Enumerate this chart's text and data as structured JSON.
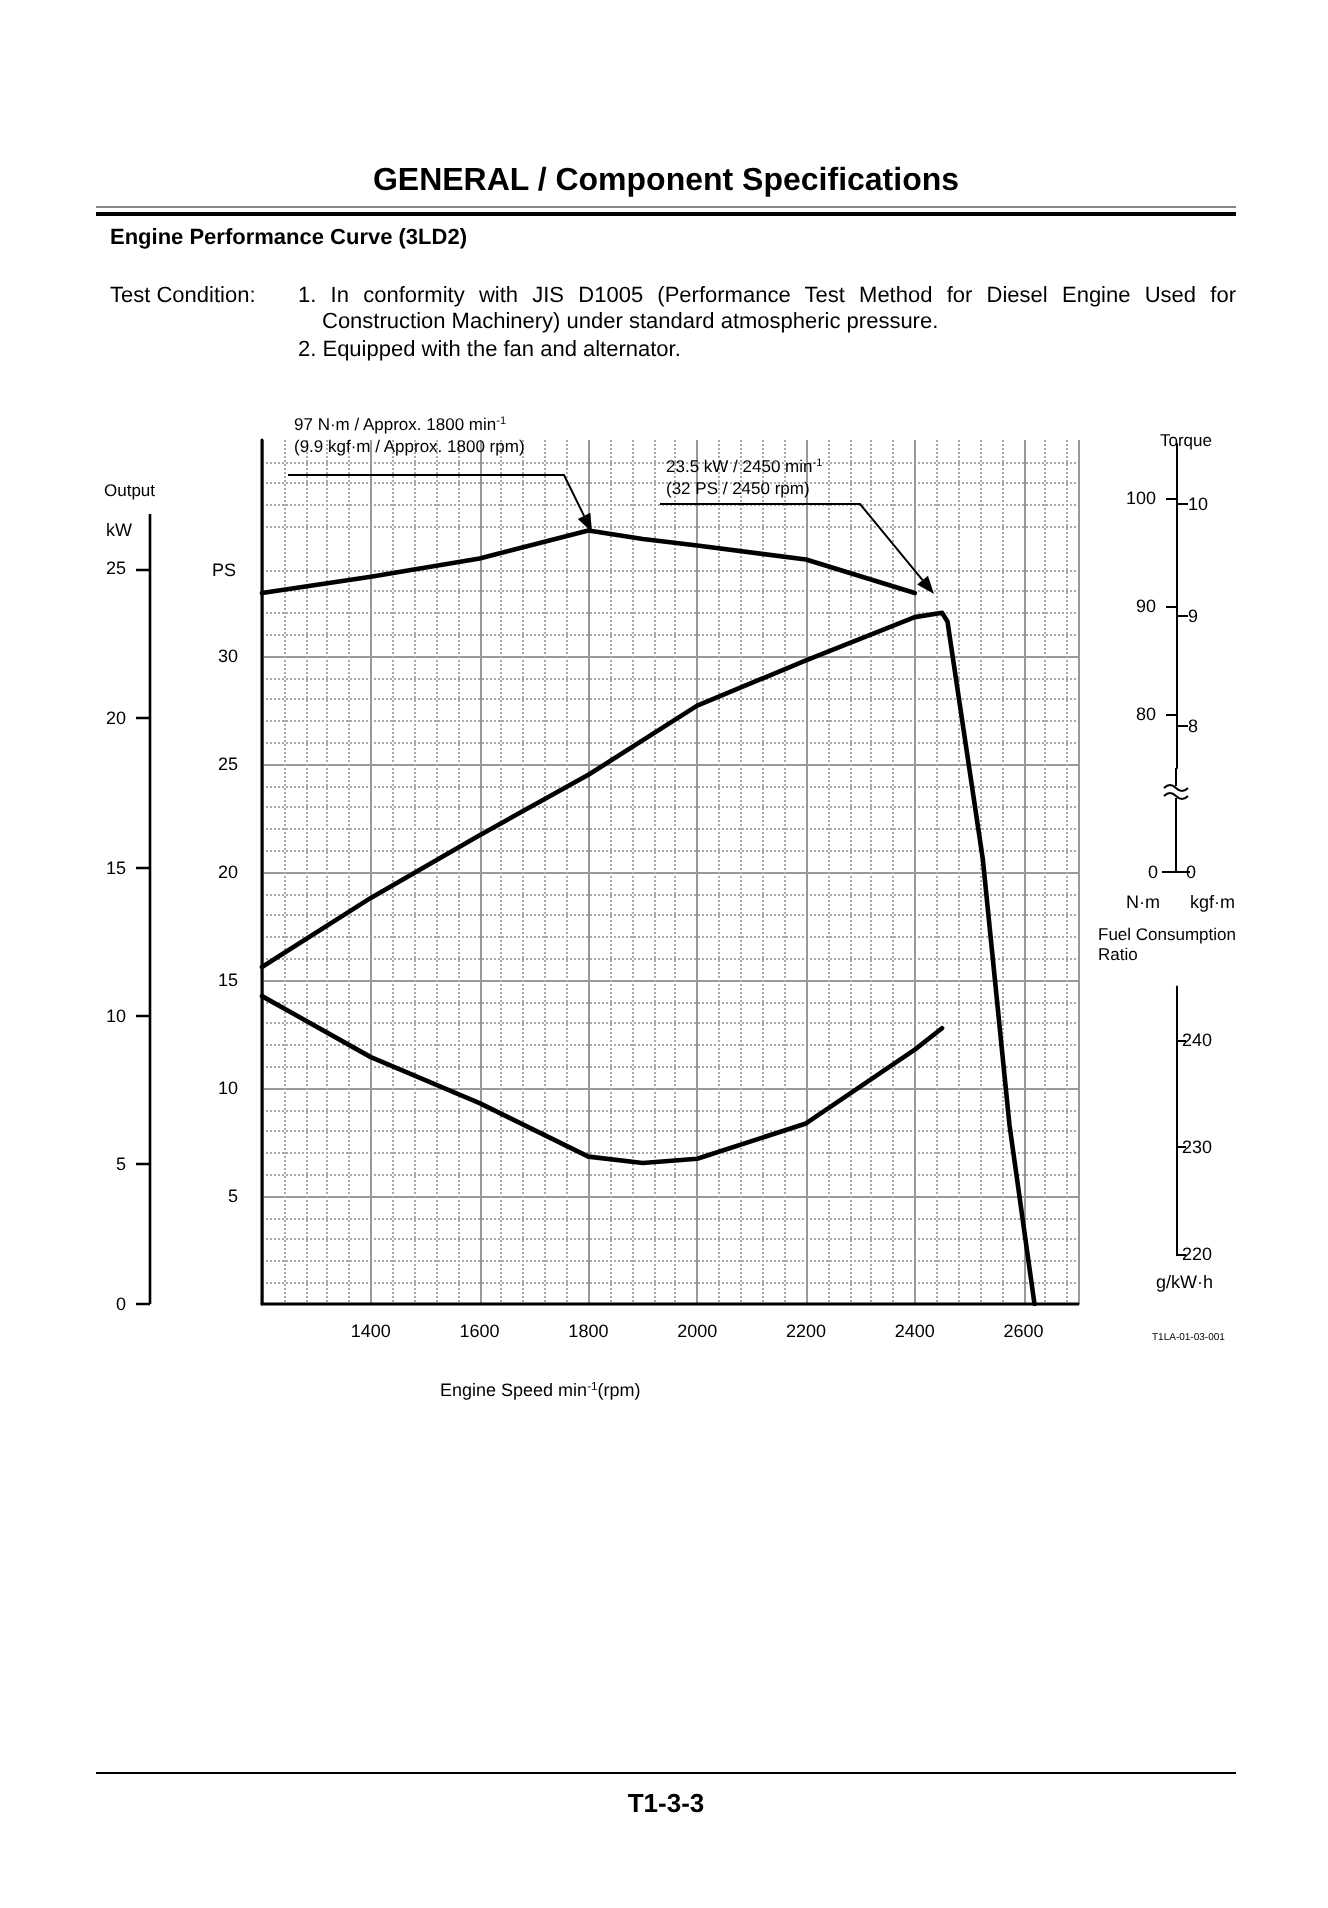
{
  "chart_data": {
    "type": "line",
    "title": "GENERAL / Component Specifications",
    "subtitle": "Engine Performance Curve (3LD2)",
    "xlabel": "Engine Speed min$^{-1}$(rpm)",
    "ylabel": "PS",
    "y2label": "N·m",
    "y3label": "g/kW·h",
    "xlim": [
      1200,
      2700
    ],
    "xticks": [
      1400,
      1600,
      1800,
      2000,
      2200,
      2400,
      2600
    ],
    "ylim": [
      0,
      40
    ],
    "yticks": [
      5,
      10,
      15,
      20,
      25,
      30
    ],
    "y2lim": [
      75,
      105
    ],
    "y2ticks": [
      80,
      90,
      100
    ],
    "y3lim": [
      220,
      245
    ],
    "y3ticks": [
      220,
      230,
      240
    ],
    "grid": true,
    "marker": "none",
    "line_style": "solid",
    "series": [
      {
        "color": "#000000",
        "x": [
          1200,
          1400,
          1600,
          1800,
          2000,
          2200,
          2400,
          2450,
          2460,
          2525,
          2574,
          2620
        ],
        "values": [
          15.6,
          18.8,
          21.7,
          24.5,
          27.7,
          29.8,
          31.8,
          32,
          31.6,
          20.6,
          8.3,
          0
        ]
      },
      {
        "axis": "y2",
        "color": "#000000",
        "x": [
          1200,
          1400,
          1600,
          1800,
          1900,
          2000,
          2200,
          2400
        ],
        "values": [
          91.2,
          92.7,
          94.4,
          97,
          96.2,
          95.6,
          94.3,
          91.2
        ]
      },
      {
        "axis": "y3",
        "color": "#000000",
        "x": [
          1200,
          1400,
          1600,
          1800,
          1900,
          2000,
          2200,
          2400,
          2450
        ],
        "values": [
          244.1,
          238.4,
          234.1,
          229.1,
          228.5,
          228.9,
          232.2,
          239.1,
          241.1
        ]
      }
    ],
    "annotations": [
      "Test Condition:",
      "1. In conformity with JIS D1005 (Performance Test Method for Diesel Engine Used for Construction Machinery) under standard atmospheric pressure.",
      "2. Equipped with the fan and alternator.",
      "97 N·m / Approx. 1800 min$^{-1}$\n(9.9 kgf·m / Approx. 1800 rpm)",
      "23.5 kW / 2450 min$^{-1}$\n(32 PS / 2450 rpm)",
      "Output",
      "kW",
      "0",
      "5",
      "10",
      "15",
      "20",
      "25",
      "Torque",
      "10",
      "9",
      "8",
      "0",
      "0",
      "kgf·m",
      "Fuel Consumption Ratio",
      "T1LA-01-03-001",
      "T1-3-3"
    ]
  }
}
